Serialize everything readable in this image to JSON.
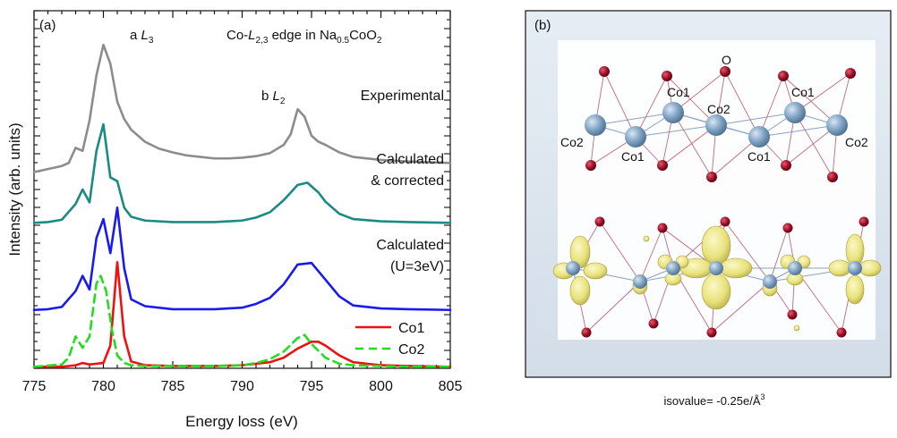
{
  "panel_a": {
    "label": "(a)",
    "title_parts": [
      "Co-",
      "L",
      "2,3",
      " edge in Na",
      "0.5",
      "CoO",
      "2"
    ],
    "peak_a": [
      "a ",
      "L",
      "3"
    ],
    "peak_b": [
      "b ",
      "L",
      "2"
    ],
    "annotations": {
      "experimental": "Experimental",
      "calc_corrected_1": "Calculated",
      "calc_corrected_2": "& corrected",
      "calc_u_1": "Calculated",
      "calc_u_2": "(U=3eV)"
    }
  },
  "panel_b": {
    "label": "(b)",
    "atom_labels": {
      "o": "O",
      "co1": "Co1",
      "co2": "Co2"
    },
    "caption_parts": [
      "isovalue= -0.25e/Å",
      "3"
    ]
  },
  "colors": {
    "experimental": "#8c8c8c",
    "calc_corrected": "#1a8a82",
    "calc_u": "#1a1aee",
    "co1": "#ee1111",
    "co2": "#22dd22",
    "co_atom": "#7fa3c4",
    "o_atom": "#9a0f24",
    "isosurface": "#e8e27a"
  },
  "chart_data": {
    "type": "line",
    "xlabel": "Energy loss (eV)",
    "ylabel": "Intensity (arb. units)",
    "xlim": [
      775,
      805
    ],
    "xticks": [
      775,
      780,
      785,
      790,
      795,
      800,
      805
    ],
    "yticks": false,
    "grid": false,
    "legend_position": "bottom-right",
    "series": [
      {
        "key": "experimental",
        "offset": 2.55,
        "x": [
          775,
          776,
          777,
          777.5,
          778,
          778.5,
          779,
          779.5,
          780,
          780.5,
          781,
          781.5,
          782,
          783,
          784,
          785,
          786,
          787,
          788,
          789,
          790,
          791,
          792,
          793,
          793.5,
          794,
          794.5,
          795,
          795.5,
          796,
          797,
          798,
          800,
          802,
          805
        ],
        "y": [
          0.02,
          0.06,
          0.1,
          0.14,
          0.34,
          0.3,
          0.7,
          1.3,
          1.7,
          1.45,
          0.95,
          0.72,
          0.58,
          0.42,
          0.33,
          0.28,
          0.24,
          0.22,
          0.2,
          0.2,
          0.21,
          0.23,
          0.27,
          0.38,
          0.52,
          0.85,
          0.75,
          0.5,
          0.42,
          0.38,
          0.28,
          0.22,
          0.18,
          0.16,
          0.14
        ]
      },
      {
        "key": "calc_corrected",
        "offset": 1.9,
        "x": [
          775,
          776,
          777,
          778,
          778.5,
          779,
          779.5,
          780,
          780.5,
          781,
          781.5,
          782,
          783,
          785,
          788,
          790,
          791,
          792,
          793,
          794,
          794.7,
          795.5,
          796,
          797,
          798,
          800,
          802,
          805
        ],
        "y": [
          0.0,
          0.01,
          0.04,
          0.25,
          0.44,
          0.27,
          0.95,
          1.3,
          0.6,
          0.55,
          0.2,
          0.08,
          0.03,
          0.01,
          0.01,
          0.03,
          0.07,
          0.14,
          0.3,
          0.5,
          0.53,
          0.4,
          0.28,
          0.12,
          0.05,
          0.02,
          0.01,
          0.0
        ]
      },
      {
        "key": "calc_u",
        "offset": 0.75,
        "x": [
          775,
          776,
          777,
          778,
          778.5,
          779,
          779.5,
          780,
          780.5,
          781,
          781.5,
          782,
          783,
          785,
          788,
          790,
          791,
          792,
          793,
          794,
          795,
          796,
          797,
          798,
          800,
          802,
          805
        ],
        "y": [
          0.0,
          0.01,
          0.04,
          0.25,
          0.45,
          0.27,
          0.95,
          1.2,
          0.75,
          1.35,
          0.55,
          0.14,
          0.05,
          0.01,
          0.01,
          0.03,
          0.08,
          0.16,
          0.34,
          0.6,
          0.62,
          0.4,
          0.18,
          0.06,
          0.02,
          0.01,
          0.0
        ]
      },
      {
        "key": "co1",
        "name": "Co1",
        "offset": 0,
        "dashed": false,
        "x": [
          775,
          777,
          778,
          778.5,
          779,
          780,
          780.5,
          781,
          781.5,
          782,
          783,
          785,
          788,
          790,
          792,
          793,
          794,
          795,
          795.5,
          796,
          797,
          798,
          800,
          802,
          805
        ],
        "y": [
          0.0,
          0.0,
          0.02,
          0.05,
          0.03,
          0.05,
          0.28,
          1.38,
          0.4,
          0.07,
          0.02,
          0.01,
          0.01,
          0.02,
          0.06,
          0.12,
          0.24,
          0.33,
          0.33,
          0.28,
          0.15,
          0.06,
          0.02,
          0.01,
          0.0
        ]
      },
      {
        "key": "co2",
        "name": "Co2",
        "offset": 0,
        "dashed": true,
        "x": [
          775,
          777,
          777.5,
          778,
          778.5,
          779,
          779.5,
          779.8,
          780.2,
          780.6,
          781,
          781.5,
          782,
          783,
          785,
          788,
          790,
          791,
          792,
          793,
          794,
          794.5,
          795,
          796,
          797,
          798,
          800,
          802,
          805
        ],
        "y": [
          0.0,
          0.03,
          0.12,
          0.4,
          0.25,
          0.4,
          1.1,
          1.2,
          1.0,
          0.5,
          0.15,
          0.05,
          0.02,
          0.01,
          0.01,
          0.01,
          0.02,
          0.05,
          0.1,
          0.2,
          0.38,
          0.42,
          0.3,
          0.12,
          0.04,
          0.02,
          0.01,
          0.0,
          0.0
        ]
      }
    ]
  }
}
